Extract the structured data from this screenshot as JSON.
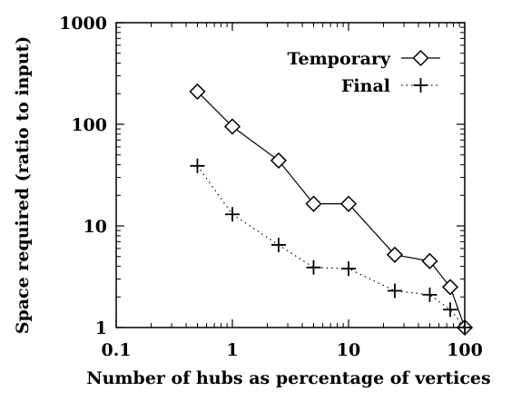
{
  "chart_data": {
    "type": "line",
    "title": "",
    "xlabel": "Number of hubs as percentage of vertices",
    "ylabel": "Space required (ratio to input)",
    "xscale": "log",
    "yscale": "log",
    "xlim": [
      0.1,
      100
    ],
    "ylim": [
      1,
      1000
    ],
    "x_ticks": [
      "0.1",
      "1",
      "10",
      "100"
    ],
    "y_ticks": [
      "1",
      "10",
      "100",
      "1000"
    ],
    "grid": false,
    "legend_position": "top-right",
    "series": [
      {
        "name": "Temporary",
        "marker": "diamond",
        "line_style": "solid",
        "x": [
          0.5,
          1,
          2.5,
          5,
          10,
          25,
          50,
          75,
          100
        ],
        "y": [
          210,
          95,
          44,
          16.5,
          16.5,
          5.2,
          4.5,
          2.5,
          1.0
        ]
      },
      {
        "name": "Final",
        "marker": "plus",
        "line_style": "dotted",
        "x": [
          0.5,
          1,
          2.5,
          5,
          10,
          25,
          50,
          75,
          100
        ],
        "y": [
          39,
          13,
          6.5,
          3.9,
          3.8,
          2.3,
          2.1,
          1.5,
          1.0
        ]
      }
    ]
  }
}
